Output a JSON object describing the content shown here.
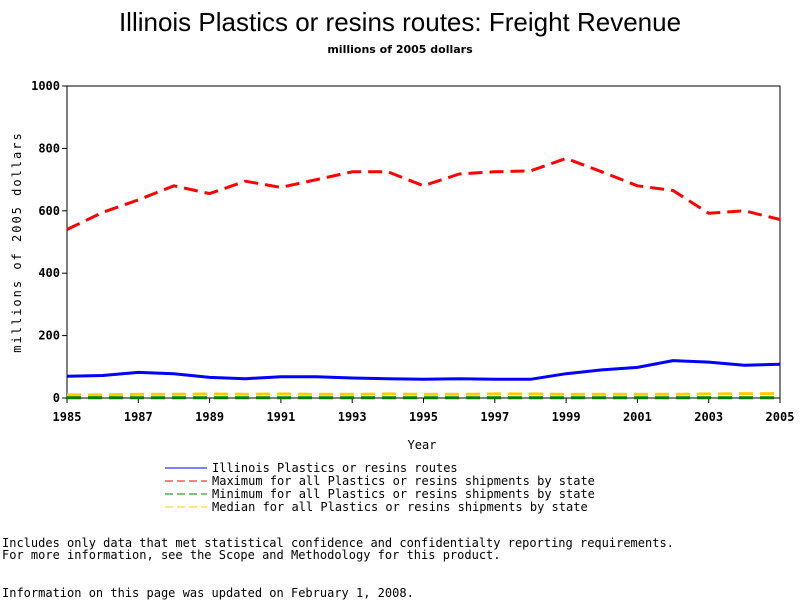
{
  "chart_data": {
    "type": "line",
    "title": "Illinois Plastics or resins routes: Freight Revenue",
    "subtitle": "millions of 2005 dollars",
    "xlabel": "Year",
    "ylabel": "millions of 2005 dollars",
    "xlim": [
      1985,
      2005
    ],
    "ylim": [
      0,
      1000
    ],
    "x_ticks": [
      1985,
      1987,
      1989,
      1991,
      1993,
      1995,
      1997,
      1999,
      2001,
      2003,
      2005
    ],
    "y_ticks": [
      0,
      200,
      400,
      600,
      800,
      1000
    ],
    "x": [
      1985,
      1986,
      1987,
      1988,
      1989,
      1990,
      1991,
      1992,
      1993,
      1994,
      1995,
      1996,
      1997,
      1998,
      1999,
      2000,
      2001,
      2002,
      2003,
      2004,
      2005
    ],
    "grid": false,
    "legend_position": "bottom",
    "series": [
      {
        "name": "Illinois Plastics or resins routes",
        "color": "#0000ff",
        "dash": "solid",
        "values": [
          70,
          72,
          82,
          78,
          66,
          62,
          68,
          68,
          64,
          62,
          60,
          62,
          60,
          60,
          78,
          90,
          98,
          120,
          115,
          105,
          108
        ]
      },
      {
        "name": "Maximum for all Plastics or resins shipments by state",
        "color": "#ff0000",
        "dash": "dashed",
        "values": [
          540,
          595,
          635,
          680,
          655,
          695,
          675,
          700,
          725,
          725,
          680,
          718,
          725,
          728,
          768,
          725,
          680,
          665,
          592,
          600,
          572
        ]
      },
      {
        "name": "Minimum for all Plastics or resins shipments by state",
        "color": "#008000",
        "dash": "dashed",
        "values": [
          1,
          1,
          1,
          1,
          1,
          1,
          1,
          1,
          1,
          1,
          1,
          1,
          1,
          1,
          1,
          1,
          1,
          1,
          1,
          1,
          1
        ]
      },
      {
        "name": "Median for all Plastics or resins shipments by state",
        "color": "#ffcc00",
        "dash": "dashed",
        "values": [
          10,
          10,
          12,
          12,
          13,
          12,
          13,
          12,
          12,
          13,
          12,
          12,
          13,
          13,
          12,
          12,
          12,
          12,
          13,
          14,
          14
        ]
      }
    ]
  },
  "notes": {
    "line1": "Includes only data that met statistical confidence and confidentialty reporting requirements.",
    "line2": "For more information, see the Scope and Methodology for this product.",
    "updated": "Information on this page was updated on February 1, 2008."
  }
}
